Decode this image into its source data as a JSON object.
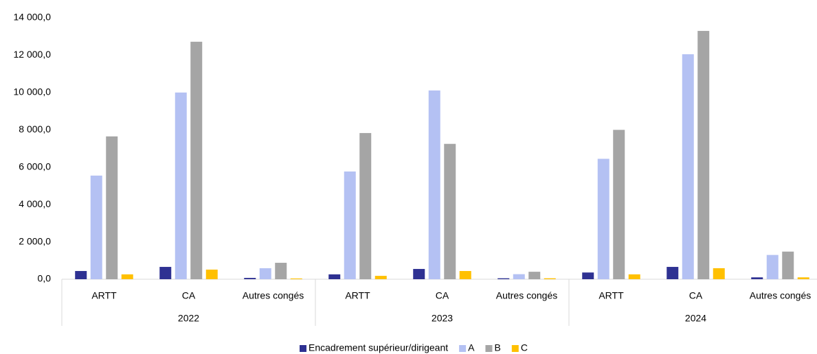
{
  "chart_data": {
    "type": "bar",
    "categories": [
      "ARTT",
      "CA",
      "Autres congés",
      "ARTT",
      "CA",
      "Autres congés",
      "ARTT",
      "CA",
      "Autres congés"
    ],
    "groups": [
      "2022",
      "2023",
      "2024"
    ],
    "series": [
      {
        "name": "Encadrement supérieur/dirigeant",
        "color": "#2e3192",
        "values": [
          440,
          660,
          70,
          260,
          550,
          50,
          360,
          660,
          100
        ]
      },
      {
        "name": "A",
        "color": "#b4c1f3",
        "values": [
          5550,
          10000,
          590,
          5770,
          10110,
          270,
          6450,
          12050,
          1300
        ]
      },
      {
        "name": "B",
        "color": "#a5a5a5",
        "values": [
          7650,
          12720,
          880,
          7830,
          7250,
          400,
          8000,
          13300,
          1480
        ]
      },
      {
        "name": "C",
        "color": "#ffc000",
        "values": [
          260,
          515,
          40,
          180,
          440,
          50,
          260,
          590,
          100
        ]
      }
    ],
    "ylim": [
      0,
      14000
    ],
    "yticks": [
      {
        "value": 0,
        "label": "0,0"
      },
      {
        "value": 2000,
        "label": "2 000,0"
      },
      {
        "value": 4000,
        "label": "4 000,0"
      },
      {
        "value": 6000,
        "label": "6 000,0"
      },
      {
        "value": 8000,
        "label": "8 000,0"
      },
      {
        "value": 10000,
        "label": "10 000,0"
      },
      {
        "value": 12000,
        "label": "12 000,0"
      },
      {
        "value": 14000,
        "label": "14 000,0"
      }
    ],
    "legend": "bottom"
  }
}
